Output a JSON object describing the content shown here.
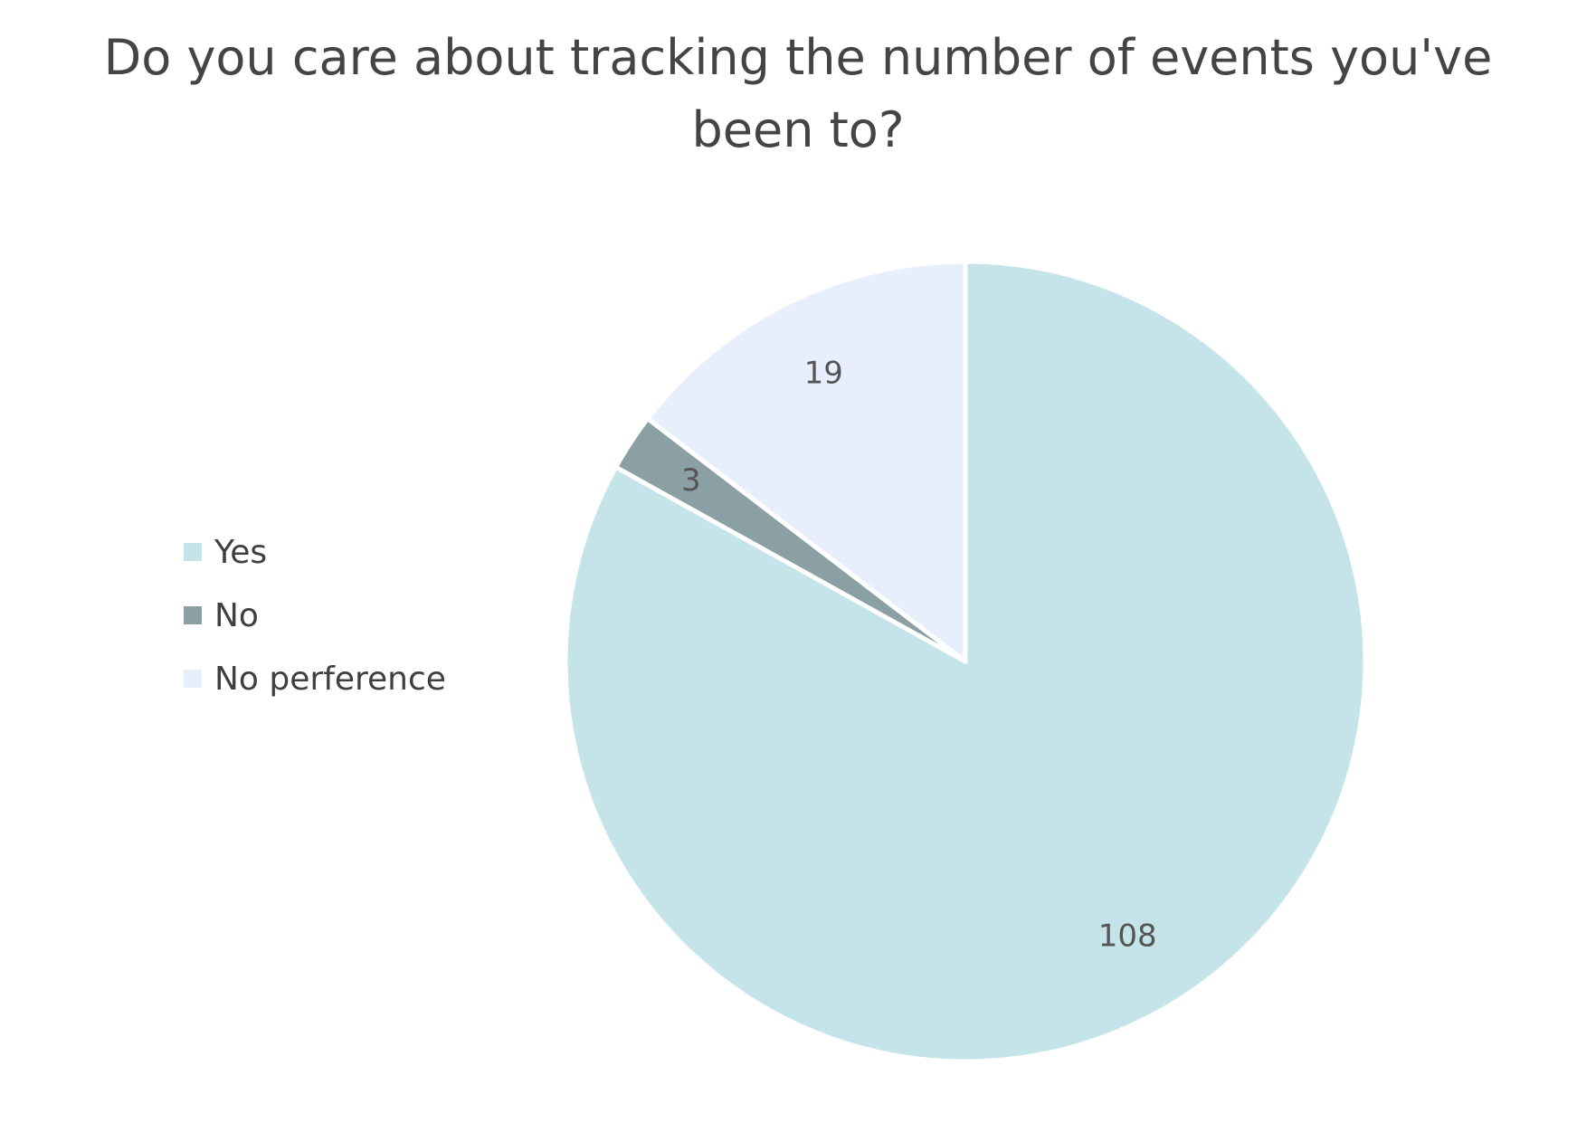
{
  "chart_data": {
    "type": "pie",
    "title": "Do you care about tracking the number of events you've been to?",
    "categories": [
      "Yes",
      "No",
      "No perference"
    ],
    "values": [
      108,
      3,
      19
    ],
    "colors": [
      "#c4e4ea",
      "#8ba0a4",
      "#e8effc"
    ],
    "data_labels": [
      "108",
      "3",
      "19"
    ],
    "legend_position": "left",
    "start_angle_deg": 90,
    "direction": "clockwise"
  }
}
